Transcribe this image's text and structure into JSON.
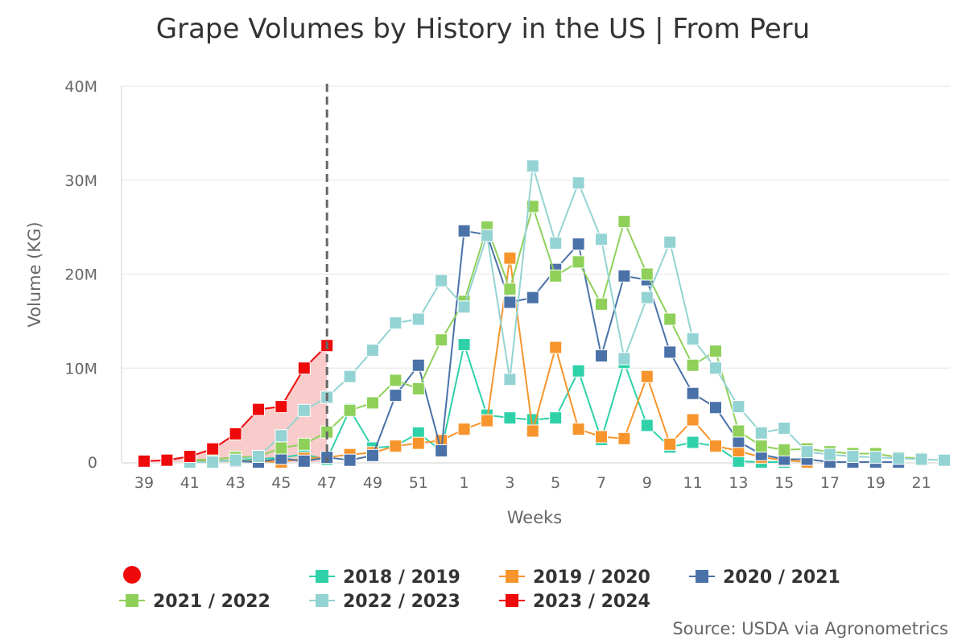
{
  "chart_data": {
    "type": "line",
    "title": "Grape Volumes by History in the US | From Peru",
    "xlabel": "Weeks",
    "ylabel": "Volume (KG)",
    "ylim": [
      0,
      40000000
    ],
    "yticks": [
      "0",
      "10M",
      "20M",
      "30M",
      "40M"
    ],
    "y_tick_values": [
      0,
      10000000,
      20000000,
      30000000,
      40000000
    ],
    "categories": [
      "39",
      "40",
      "41",
      "42",
      "43",
      "44",
      "45",
      "46",
      "47",
      "48",
      "49",
      "50",
      "51",
      "52",
      "1",
      "2",
      "3",
      "4",
      "5",
      "6",
      "7",
      "8",
      "9",
      "10",
      "11",
      "12",
      "13",
      "14",
      "15",
      "16",
      "17",
      "18",
      "19",
      "20",
      "21",
      "22"
    ],
    "x_tick_labels": [
      "39",
      "41",
      "43",
      "45",
      "47",
      "49",
      "51",
      "1",
      "3",
      "5",
      "7",
      "9",
      "11",
      "13",
      "15",
      "17",
      "19",
      "21"
    ],
    "current_week": "47",
    "grid": "horizontal",
    "legend_position": "bottom",
    "series": [
      {
        "name": "2018 / 2019",
        "color": "#2fd1a8",
        "values": [
          null,
          null,
          0.1,
          0.1,
          0.2,
          0.3,
          0.5,
          0.8,
          0.3,
          5.6,
          1.5,
          1.7,
          3.1,
          1.2,
          12.5,
          5.0,
          4.7,
          4.5,
          4.7,
          9.7,
          2.4,
          10.6,
          3.9,
          1.6,
          2.1,
          1.7,
          0.1,
          0.0,
          0.0,
          null,
          null,
          null,
          null,
          null,
          null,
          null
        ]
      },
      {
        "name": "2019 / 2020",
        "color": "#f7952c",
        "values": [
          null,
          null,
          0.0,
          0.1,
          0.1,
          0.1,
          0.0,
          0.4,
          0.5,
          0.8,
          1.0,
          1.7,
          2.0,
          2.3,
          3.5,
          4.4,
          21.7,
          3.3,
          12.2,
          3.5,
          2.7,
          2.5,
          9.1,
          1.9,
          4.5,
          1.7,
          1.2,
          0.5,
          0.2,
          0.0,
          null,
          null,
          null,
          null,
          null,
          null
        ]
      },
      {
        "name": "2020 / 2021",
        "color": "#4a72a8",
        "values": [
          null,
          null,
          null,
          null,
          0.1,
          0.0,
          0.4,
          0.1,
          0.5,
          0.2,
          0.7,
          7.1,
          10.3,
          1.2,
          24.6,
          24.2,
          17.0,
          17.5,
          20.5,
          23.2,
          11.3,
          19.8,
          19.4,
          11.7,
          7.3,
          5.8,
          2.2,
          0.8,
          0.3,
          0.3,
          0.0,
          0.0,
          0.0,
          0.0,
          null,
          null
        ]
      },
      {
        "name": "2021 / 2022",
        "color": "#8fd05a",
        "values": [
          null,
          null,
          0.2,
          0.3,
          0.5,
          0.6,
          1.5,
          1.9,
          3.2,
          5.5,
          6.3,
          8.7,
          7.8,
          13.0,
          17.1,
          25.0,
          18.4,
          27.2,
          19.8,
          21.3,
          16.8,
          25.6,
          20.0,
          15.2,
          10.3,
          11.8,
          3.3,
          1.7,
          1.3,
          1.4,
          1.1,
          0.9,
          0.9,
          0.5,
          0.4,
          null
        ]
      },
      {
        "name": "2022 / 2023",
        "color": "#94d3d3",
        "values": [
          null,
          null,
          0.0,
          0.0,
          0.2,
          0.6,
          2.8,
          5.5,
          6.9,
          9.1,
          11.9,
          14.8,
          15.2,
          19.3,
          16.5,
          24.1,
          8.8,
          31.5,
          23.3,
          29.7,
          23.7,
          11.0,
          17.5,
          23.4,
          13.1,
          10.0,
          5.9,
          3.1,
          3.6,
          1.1,
          0.8,
          0.6,
          0.5,
          0.4,
          0.3,
          0.2
        ]
      },
      {
        "name": "2023 / 2024",
        "color": "#ee0a0a",
        "values": [
          0.1,
          0.2,
          0.6,
          1.4,
          3.0,
          5.6,
          5.9,
          10.0,
          12.4,
          null,
          null,
          null,
          null,
          null,
          null,
          null,
          null,
          null,
          null,
          null,
          null,
          null,
          null,
          null,
          null,
          null,
          null,
          null,
          null,
          null,
          null,
          null,
          null,
          null,
          null,
          null
        ]
      }
    ],
    "value_units": "millions of KG",
    "legend_dot_color": "#ee0a0a",
    "area_fill_color": "#f9c9c9"
  },
  "source": "Source: USDA via Agronometrics"
}
